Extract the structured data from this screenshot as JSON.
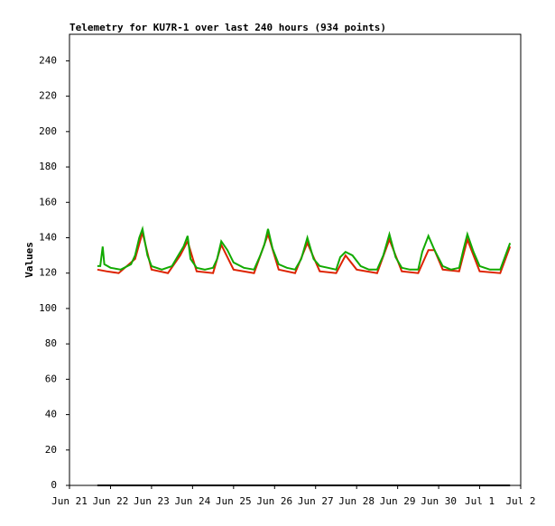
{
  "chart_data": {
    "type": "line",
    "title": "Telemetry for KU7R-1 over last 240 hours (934 points)",
    "y_label": "Values",
    "xlim": [
      0,
      11
    ],
    "xticks": [
      {
        "value": 0,
        "label": "Jun 21"
      },
      {
        "value": 1,
        "label": "Jun 22"
      },
      {
        "value": 2,
        "label": "Jun 23"
      },
      {
        "value": 3,
        "label": "Jun 24"
      },
      {
        "value": 4,
        "label": "Jun 25"
      },
      {
        "value": 5,
        "label": "Jun 26"
      },
      {
        "value": 6,
        "label": "Jun 27"
      },
      {
        "value": 7,
        "label": "Jun 28"
      },
      {
        "value": 8,
        "label": "Jun 29"
      },
      {
        "value": 9,
        "label": "Jun 30"
      },
      {
        "value": 10,
        "label": "Jul 1"
      },
      {
        "value": 11,
        "label": "Jul 2"
      }
    ],
    "ylim": [
      0,
      255
    ],
    "yticks": [
      0,
      20,
      40,
      60,
      80,
      100,
      120,
      140,
      160,
      180,
      200,
      220,
      240
    ],
    "series": [
      {
        "color": "#000000",
        "x": [
          0.68,
          10.74
        ],
        "values": [
          0,
          0
        ]
      },
      {
        "color": "#dd2200",
        "x": [
          0.68,
          0.9,
          1.2,
          1.6,
          1.78,
          2.0,
          2.4,
          2.7,
          2.88,
          3.1,
          3.5,
          3.7,
          4.0,
          4.5,
          4.84,
          5.1,
          5.5,
          5.8,
          6.1,
          6.5,
          6.73,
          7.0,
          7.5,
          7.8,
          8.1,
          8.5,
          8.75,
          8.9,
          9.1,
          9.5,
          9.7,
          10.0,
          10.5,
          10.74
        ],
        "values": [
          122,
          121,
          120,
          128,
          143,
          122,
          120,
          130,
          138,
          121,
          120,
          136,
          122,
          120,
          142,
          122,
          120,
          137,
          121,
          120,
          130,
          122,
          120,
          139,
          121,
          120,
          133,
          133,
          122,
          121,
          139,
          121,
          120,
          135
        ]
      },
      {
        "color": "#11aa00",
        "x": [
          0.68,
          0.75,
          0.81,
          0.85,
          1.0,
          1.25,
          1.5,
          1.6,
          1.7,
          1.78,
          1.9,
          2.0,
          2.25,
          2.5,
          2.65,
          2.78,
          2.88,
          2.95,
          3.1,
          3.3,
          3.5,
          3.6,
          3.7,
          3.85,
          4.0,
          4.25,
          4.5,
          4.65,
          4.75,
          4.84,
          4.95,
          5.1,
          5.3,
          5.5,
          5.65,
          5.8,
          5.95,
          6.1,
          6.3,
          6.5,
          6.6,
          6.73,
          6.9,
          7.1,
          7.3,
          7.5,
          7.65,
          7.8,
          7.95,
          8.1,
          8.3,
          8.5,
          8.6,
          8.75,
          8.9,
          9.1,
          9.3,
          9.5,
          9.6,
          9.7,
          9.85,
          10.0,
          10.25,
          10.5,
          10.74
        ],
        "values": [
          124,
          124,
          135,
          125,
          123,
          122,
          125,
          130,
          140,
          145,
          130,
          124,
          122,
          124,
          130,
          135,
          141,
          128,
          123,
          122,
          123,
          128,
          138,
          133,
          126,
          123,
          122,
          130,
          136,
          145,
          134,
          125,
          123,
          122,
          128,
          140,
          128,
          124,
          123,
          122,
          129,
          132,
          130,
          124,
          122,
          122,
          130,
          142,
          129,
          123,
          122,
          122,
          132,
          141,
          133,
          124,
          122,
          123,
          133,
          142,
          132,
          124,
          122,
          122,
          137
        ]
      }
    ]
  }
}
